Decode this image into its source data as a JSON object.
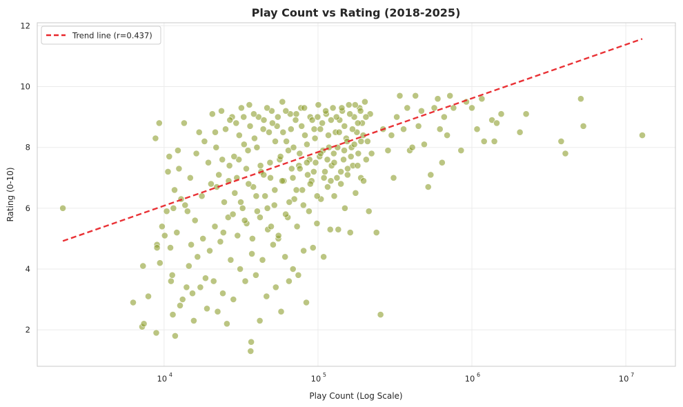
{
  "chart_data": {
    "type": "scatter",
    "title": "Play Count vs Rating (2018-2025)",
    "xlabel": "Play Count (Log Scale)",
    "ylabel": "Rating (0-10)",
    "xscale": "log",
    "xlim": [
      1500,
      21000000
    ],
    "ylim": [
      0.8,
      12.1
    ],
    "xticks": [
      {
        "value": 10000,
        "base": "10",
        "exp": "4"
      },
      {
        "value": 100000,
        "base": "10",
        "exp": "5"
      },
      {
        "value": 1000000,
        "base": "10",
        "exp": "6"
      },
      {
        "value": 10000000,
        "base": "10",
        "exp": "7"
      }
    ],
    "yticks": [
      2,
      4,
      6,
      8,
      10,
      12
    ],
    "grid": true,
    "legend": {
      "position": "top-left",
      "entries": [
        {
          "label": "Trend line (r=0.437)",
          "style": "dashed",
          "color": "#e8262a"
        }
      ]
    },
    "colors": {
      "points": "#8d9e2e",
      "trend": "#e8262a",
      "grid": "#ebebeb",
      "axis": "#c8c8c8"
    },
    "trend_line": {
      "label": "Trend line (r=0.437)",
      "x": [
        2200,
        12800000
      ],
      "y": [
        4.92,
        11.57
      ]
    },
    "points": [
      [
        2200,
        6.0
      ],
      [
        6300,
        2.9
      ],
      [
        7200,
        2.1
      ],
      [
        7400,
        2.2
      ],
      [
        7300,
        4.1
      ],
      [
        7900,
        3.1
      ],
      [
        8800,
        8.3
      ],
      [
        9000,
        4.8
      ],
      [
        9000,
        4.7
      ],
      [
        8900,
        1.9
      ],
      [
        9300,
        8.8
      ],
      [
        9400,
        4.2
      ],
      [
        9700,
        5.4
      ],
      [
        10100,
        5.1
      ],
      [
        10400,
        5.9
      ],
      [
        10600,
        7.2
      ],
      [
        10800,
        7.7
      ],
      [
        11000,
        4.7
      ],
      [
        11100,
        3.6
      ],
      [
        11300,
        3.8
      ],
      [
        11400,
        2.5
      ],
      [
        11500,
        6.0
      ],
      [
        11700,
        6.6
      ],
      [
        11800,
        1.8
      ],
      [
        12100,
        5.2
      ],
      [
        12300,
        7.9
      ],
      [
        12500,
        7.3
      ],
      [
        12700,
        2.8
      ],
      [
        12900,
        6.3
      ],
      [
        13200,
        3.0
      ],
      [
        13500,
        8.8
      ],
      [
        13700,
        6.1
      ],
      [
        14000,
        3.4
      ],
      [
        14200,
        5.9
      ],
      [
        14500,
        4.1
      ],
      [
        14800,
        7.0
      ],
      [
        15000,
        4.8
      ],
      [
        15300,
        3.2
      ],
      [
        15600,
        2.3
      ],
      [
        15900,
        5.6
      ],
      [
        16200,
        7.8
      ],
      [
        16500,
        4.4
      ],
      [
        16900,
        8.5
      ],
      [
        17200,
        3.4
      ],
      [
        17600,
        6.4
      ],
      [
        17900,
        5.0
      ],
      [
        18300,
        8.2
      ],
      [
        18600,
        3.7
      ],
      [
        19000,
        2.7
      ],
      [
        19400,
        7.5
      ],
      [
        19800,
        4.6
      ],
      [
        20200,
        6.8
      ],
      [
        20600,
        9.1
      ],
      [
        21000,
        3.6
      ],
      [
        21400,
        5.4
      ],
      [
        21800,
        8.0
      ],
      [
        22300,
        2.6
      ],
      [
        22700,
        7.1
      ],
      [
        23200,
        4.9
      ],
      [
        23600,
        9.2
      ],
      [
        24100,
        3.2
      ],
      [
        24600,
        6.2
      ],
      [
        25100,
        8.6
      ],
      [
        25600,
        2.2
      ],
      [
        26100,
        5.7
      ],
      [
        26600,
        7.4
      ],
      [
        27100,
        4.3
      ],
      [
        27700,
        9.0
      ],
      [
        28200,
        3.0
      ],
      [
        28800,
        6.5
      ],
      [
        29400,
        8.8
      ],
      [
        30000,
        5.1
      ],
      [
        30600,
        7.6
      ],
      [
        31200,
        4.0
      ],
      [
        31800,
        9.3
      ],
      [
        32400,
        6.0
      ],
      [
        33100,
        8.1
      ],
      [
        33700,
        3.6
      ],
      [
        34400,
        5.5
      ],
      [
        35100,
        7.9
      ],
      [
        35800,
        9.4
      ],
      [
        36500,
        1.3
      ],
      [
        36800,
        1.6
      ],
      [
        37200,
        4.5
      ],
      [
        38000,
        6.7
      ],
      [
        38700,
        8.3
      ],
      [
        39500,
        3.8
      ],
      [
        40300,
        5.9
      ],
      [
        41100,
        9.0
      ],
      [
        41900,
        2.3
      ],
      [
        42700,
        7.2
      ],
      [
        43600,
        4.3
      ],
      [
        44500,
        8.9
      ],
      [
        45300,
        6.4
      ],
      [
        46300,
        3.1
      ],
      [
        47200,
        5.3
      ],
      [
        48100,
        8.5
      ],
      [
        49100,
        7.0
      ],
      [
        50100,
        9.2
      ],
      [
        51100,
        4.8
      ],
      [
        52100,
        6.1
      ],
      [
        53200,
        3.4
      ],
      [
        54200,
        8.7
      ],
      [
        55300,
        5.0
      ],
      [
        56400,
        7.6
      ],
      [
        57600,
        2.6
      ],
      [
        58700,
        9.5
      ],
      [
        59900,
        6.9
      ],
      [
        61100,
        4.4
      ],
      [
        62300,
        8.2
      ],
      [
        63600,
        5.7
      ],
      [
        64800,
        3.6
      ],
      [
        66100,
        9.1
      ],
      [
        67500,
        7.3
      ],
      [
        68800,
        4.0
      ],
      [
        70200,
        6.3
      ],
      [
        71600,
        8.9
      ],
      [
        73100,
        5.4
      ],
      [
        74500,
        3.8
      ],
      [
        76000,
        7.8
      ],
      [
        77600,
        9.3
      ],
      [
        79100,
        6.6
      ],
      [
        80700,
        4.6
      ],
      [
        82300,
        8.4
      ],
      [
        84000,
        2.9
      ],
      [
        85700,
        7.1
      ],
      [
        87400,
        5.9
      ],
      [
        89100,
        9.0
      ],
      [
        90900,
        6.9
      ],
      [
        92800,
        4.7
      ],
      [
        94600,
        8.6
      ],
      [
        96500,
        7.5
      ],
      [
        98500,
        5.5
      ],
      [
        100500,
        9.4
      ],
      [
        102500,
        7.7
      ],
      [
        104500,
        6.3
      ],
      [
        106600,
        8.8
      ],
      [
        108800,
        4.4
      ],
      [
        111000,
        7.2
      ],
      [
        113200,
        9.1
      ],
      [
        115500,
        6.7
      ],
      [
        117800,
        8.0
      ],
      [
        120200,
        5.3
      ],
      [
        122600,
        7.4
      ],
      [
        125100,
        9.3
      ],
      [
        127600,
        6.4
      ],
      [
        130100,
        8.5
      ],
      [
        132800,
        7.0
      ],
      [
        135400,
        5.3
      ],
      [
        138200,
        8.9
      ],
      [
        140900,
        6.8
      ],
      [
        143800,
        9.2
      ],
      [
        146700,
        7.6
      ],
      [
        149600,
        6.0
      ],
      [
        152600,
        8.3
      ],
      [
        155700,
        7.1
      ],
      [
        158800,
        9.4
      ],
      [
        162000,
        5.2
      ],
      [
        165300,
        8.0
      ],
      [
        168600,
        7.4
      ],
      [
        172000,
        9.0
      ],
      [
        175500,
        6.5
      ],
      [
        179000,
        8.5
      ],
      [
        182600,
        7.8
      ],
      [
        186300,
        9.3
      ],
      [
        190000,
        7.0
      ],
      [
        193800,
        8.8
      ],
      [
        197800,
        6.9
      ],
      [
        201700,
        9.5
      ],
      [
        205800,
        7.6
      ],
      [
        209900,
        8.2
      ],
      [
        214200,
        5.9
      ],
      [
        218500,
        9.1
      ],
      [
        222900,
        7.8
      ],
      [
        240000,
        5.2
      ],
      [
        255000,
        2.5
      ],
      [
        265000,
        8.6
      ],
      [
        285000,
        7.9
      ],
      [
        300000,
        8.4
      ],
      [
        310000,
        7.0
      ],
      [
        325000,
        9.0
      ],
      [
        340000,
        9.7
      ],
      [
        360000,
        8.6
      ],
      [
        380000,
        9.3
      ],
      [
        395000,
        7.9
      ],
      [
        410000,
        8.0
      ],
      [
        430000,
        9.7
      ],
      [
        450000,
        8.7
      ],
      [
        470000,
        9.2
      ],
      [
        490000,
        8.1
      ],
      [
        520000,
        6.7
      ],
      [
        540000,
        7.1
      ],
      [
        570000,
        9.3
      ],
      [
        600000,
        9.6
      ],
      [
        620000,
        8.6
      ],
      [
        640000,
        7.5
      ],
      [
        660000,
        9.0
      ],
      [
        690000,
        8.4
      ],
      [
        720000,
        9.7
      ],
      [
        760000,
        9.3
      ],
      [
        850000,
        7.9
      ],
      [
        920000,
        9.5
      ],
      [
        1000000,
        9.3
      ],
      [
        1080000,
        8.6
      ],
      [
        1160000,
        9.6
      ],
      [
        1200000,
        8.2
      ],
      [
        1350000,
        8.9
      ],
      [
        1400000,
        8.2
      ],
      [
        1450000,
        8.8
      ],
      [
        1550000,
        9.1
      ],
      [
        2050000,
        8.5
      ],
      [
        2250000,
        9.1
      ],
      [
        3800000,
        8.2
      ],
      [
        4050000,
        7.8
      ],
      [
        5100000,
        9.6
      ],
      [
        5300000,
        8.7
      ],
      [
        12800000,
        8.4
      ],
      [
        21500,
        8.5
      ],
      [
        23900,
        7.6
      ],
      [
        26800,
        8.9
      ],
      [
        28500,
        7.7
      ],
      [
        30800,
        8.4
      ],
      [
        32900,
        9.0
      ],
      [
        34200,
        7.3
      ],
      [
        36200,
        8.7
      ],
      [
        38300,
        9.1
      ],
      [
        40100,
        8.0
      ],
      [
        42300,
        7.4
      ],
      [
        44100,
        8.6
      ],
      [
        46700,
        9.3
      ],
      [
        48800,
        7.5
      ],
      [
        50600,
        8.8
      ],
      [
        52800,
        8.2
      ],
      [
        54900,
        9.0
      ],
      [
        57100,
        7.7
      ],
      [
        59300,
        8.5
      ],
      [
        61800,
        9.2
      ],
      [
        64200,
        7.9
      ],
      [
        66800,
        8.6
      ],
      [
        69400,
        8.0
      ],
      [
        72300,
        9.1
      ],
      [
        75200,
        7.4
      ],
      [
        78300,
        8.7
      ],
      [
        81500,
        9.3
      ],
      [
        84800,
        8.1
      ],
      [
        88200,
        7.6
      ],
      [
        91800,
        8.9
      ],
      [
        95600,
        8.3
      ],
      [
        99500,
        9.0
      ],
      [
        103600,
        8.6
      ],
      [
        107800,
        7.9
      ],
      [
        112200,
        9.2
      ],
      [
        116800,
        8.4
      ],
      [
        121600,
        8.9
      ],
      [
        126600,
        7.8
      ],
      [
        131800,
        9.0
      ],
      [
        137200,
        8.5
      ],
      [
        142800,
        9.3
      ],
      [
        148600,
        8.7
      ],
      [
        154700,
        8.2
      ],
      [
        161000,
        9.1
      ],
      [
        167600,
        8.6
      ],
      [
        174400,
        9.4
      ],
      [
        181600,
        8.8
      ],
      [
        189000,
        9.2
      ],
      [
        196700,
        8.4
      ],
      [
        204800,
        9.0
      ],
      [
        22000,
        6.7
      ],
      [
        24300,
        5.2
      ],
      [
        26300,
        6.9
      ],
      [
        28000,
        5.8
      ],
      [
        29700,
        7.0
      ],
      [
        31500,
        6.2
      ],
      [
        33400,
        5.6
      ],
      [
        35400,
        6.8
      ],
      [
        37500,
        5.0
      ],
      [
        39700,
        6.4
      ],
      [
        42000,
        5.7
      ],
      [
        44400,
        7.1
      ],
      [
        46900,
        6.0
      ],
      [
        49600,
        5.4
      ],
      [
        52400,
        6.6
      ],
      [
        55400,
        5.1
      ],
      [
        58500,
        6.9
      ],
      [
        61700,
        5.8
      ],
      [
        65100,
        6.2
      ],
      [
        68700,
        7.0
      ],
      [
        72400,
        6.6
      ],
      [
        76300,
        7.3
      ],
      [
        80400,
        6.1
      ],
      [
        84700,
        7.5
      ],
      [
        89200,
        6.8
      ],
      [
        93900,
        7.2
      ],
      [
        98800,
        6.4
      ],
      [
        104000,
        7.8
      ],
      [
        109400,
        7.0
      ],
      [
        115100,
        7.6
      ],
      [
        121100,
        6.9
      ],
      [
        127400,
        7.5
      ],
      [
        134000,
        8.0
      ],
      [
        140900,
        7.2
      ],
      [
        148200,
        7.9
      ],
      [
        155800,
        7.3
      ],
      [
        163800,
        7.7
      ],
      [
        172200,
        8.1
      ],
      [
        181000,
        7.4
      ],
      [
        190300,
        8.2
      ]
    ]
  }
}
